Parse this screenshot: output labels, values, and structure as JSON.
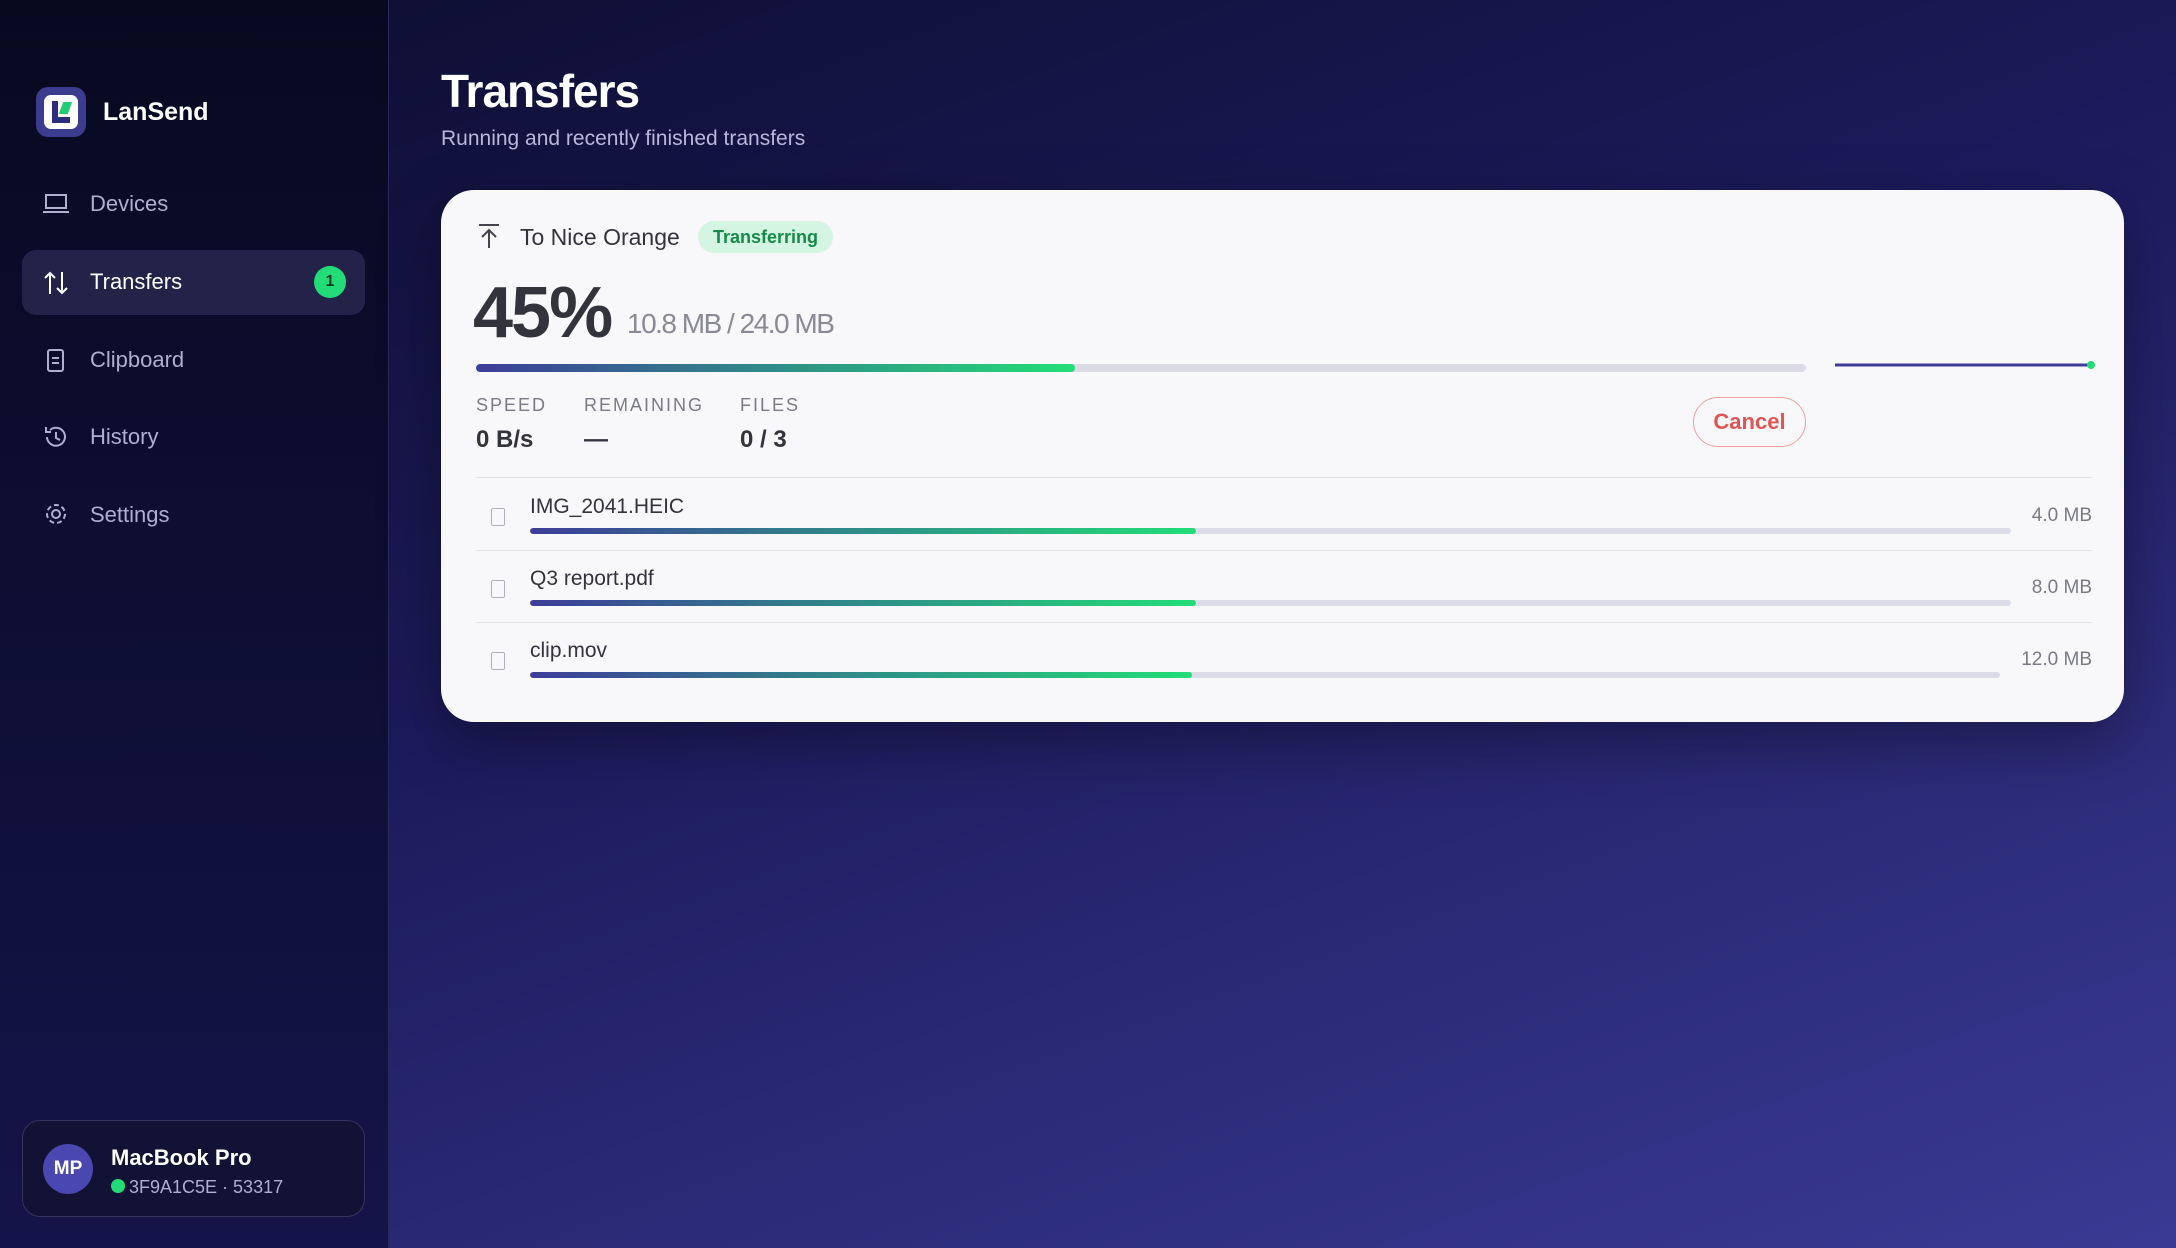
{
  "sidebar": {
    "app_name": "LanSend",
    "nav": [
      {
        "label": "Devices"
      },
      {
        "label": "Transfers",
        "badge": "1"
      },
      {
        "label": "Clipboard"
      },
      {
        "label": "History"
      },
      {
        "label": "Settings"
      }
    ],
    "device": {
      "initials": "MP",
      "name": "MacBook Pro",
      "id": "3F9A1C5E · 53317"
    }
  },
  "header": {
    "title": "Transfers",
    "subtitle": "Running and recently finished transfers"
  },
  "transfer": {
    "title": "To Nice Orange",
    "status": "Transferring",
    "percent": {
      "value": 45,
      "label": "45%"
    },
    "size": "10.8 MB / 24.0 MB",
    "stats": [
      {
        "label": "SPEED",
        "value": "0 B/s"
      },
      {
        "label": "REMAINING",
        "value": "—"
      },
      {
        "label": "FILES",
        "value": "0 / 3"
      }
    ],
    "cancel": "Cancel",
    "files": [
      {
        "name": "IMG_2041.HEIC",
        "size": "4.0 MB",
        "progress": 45
      },
      {
        "name": "Q3 report.pdf",
        "size": "8.0 MB",
        "progress": 45
      },
      {
        "name": "clip.mov",
        "size": "12.0 MB",
        "progress": 45
      }
    ]
  }
}
